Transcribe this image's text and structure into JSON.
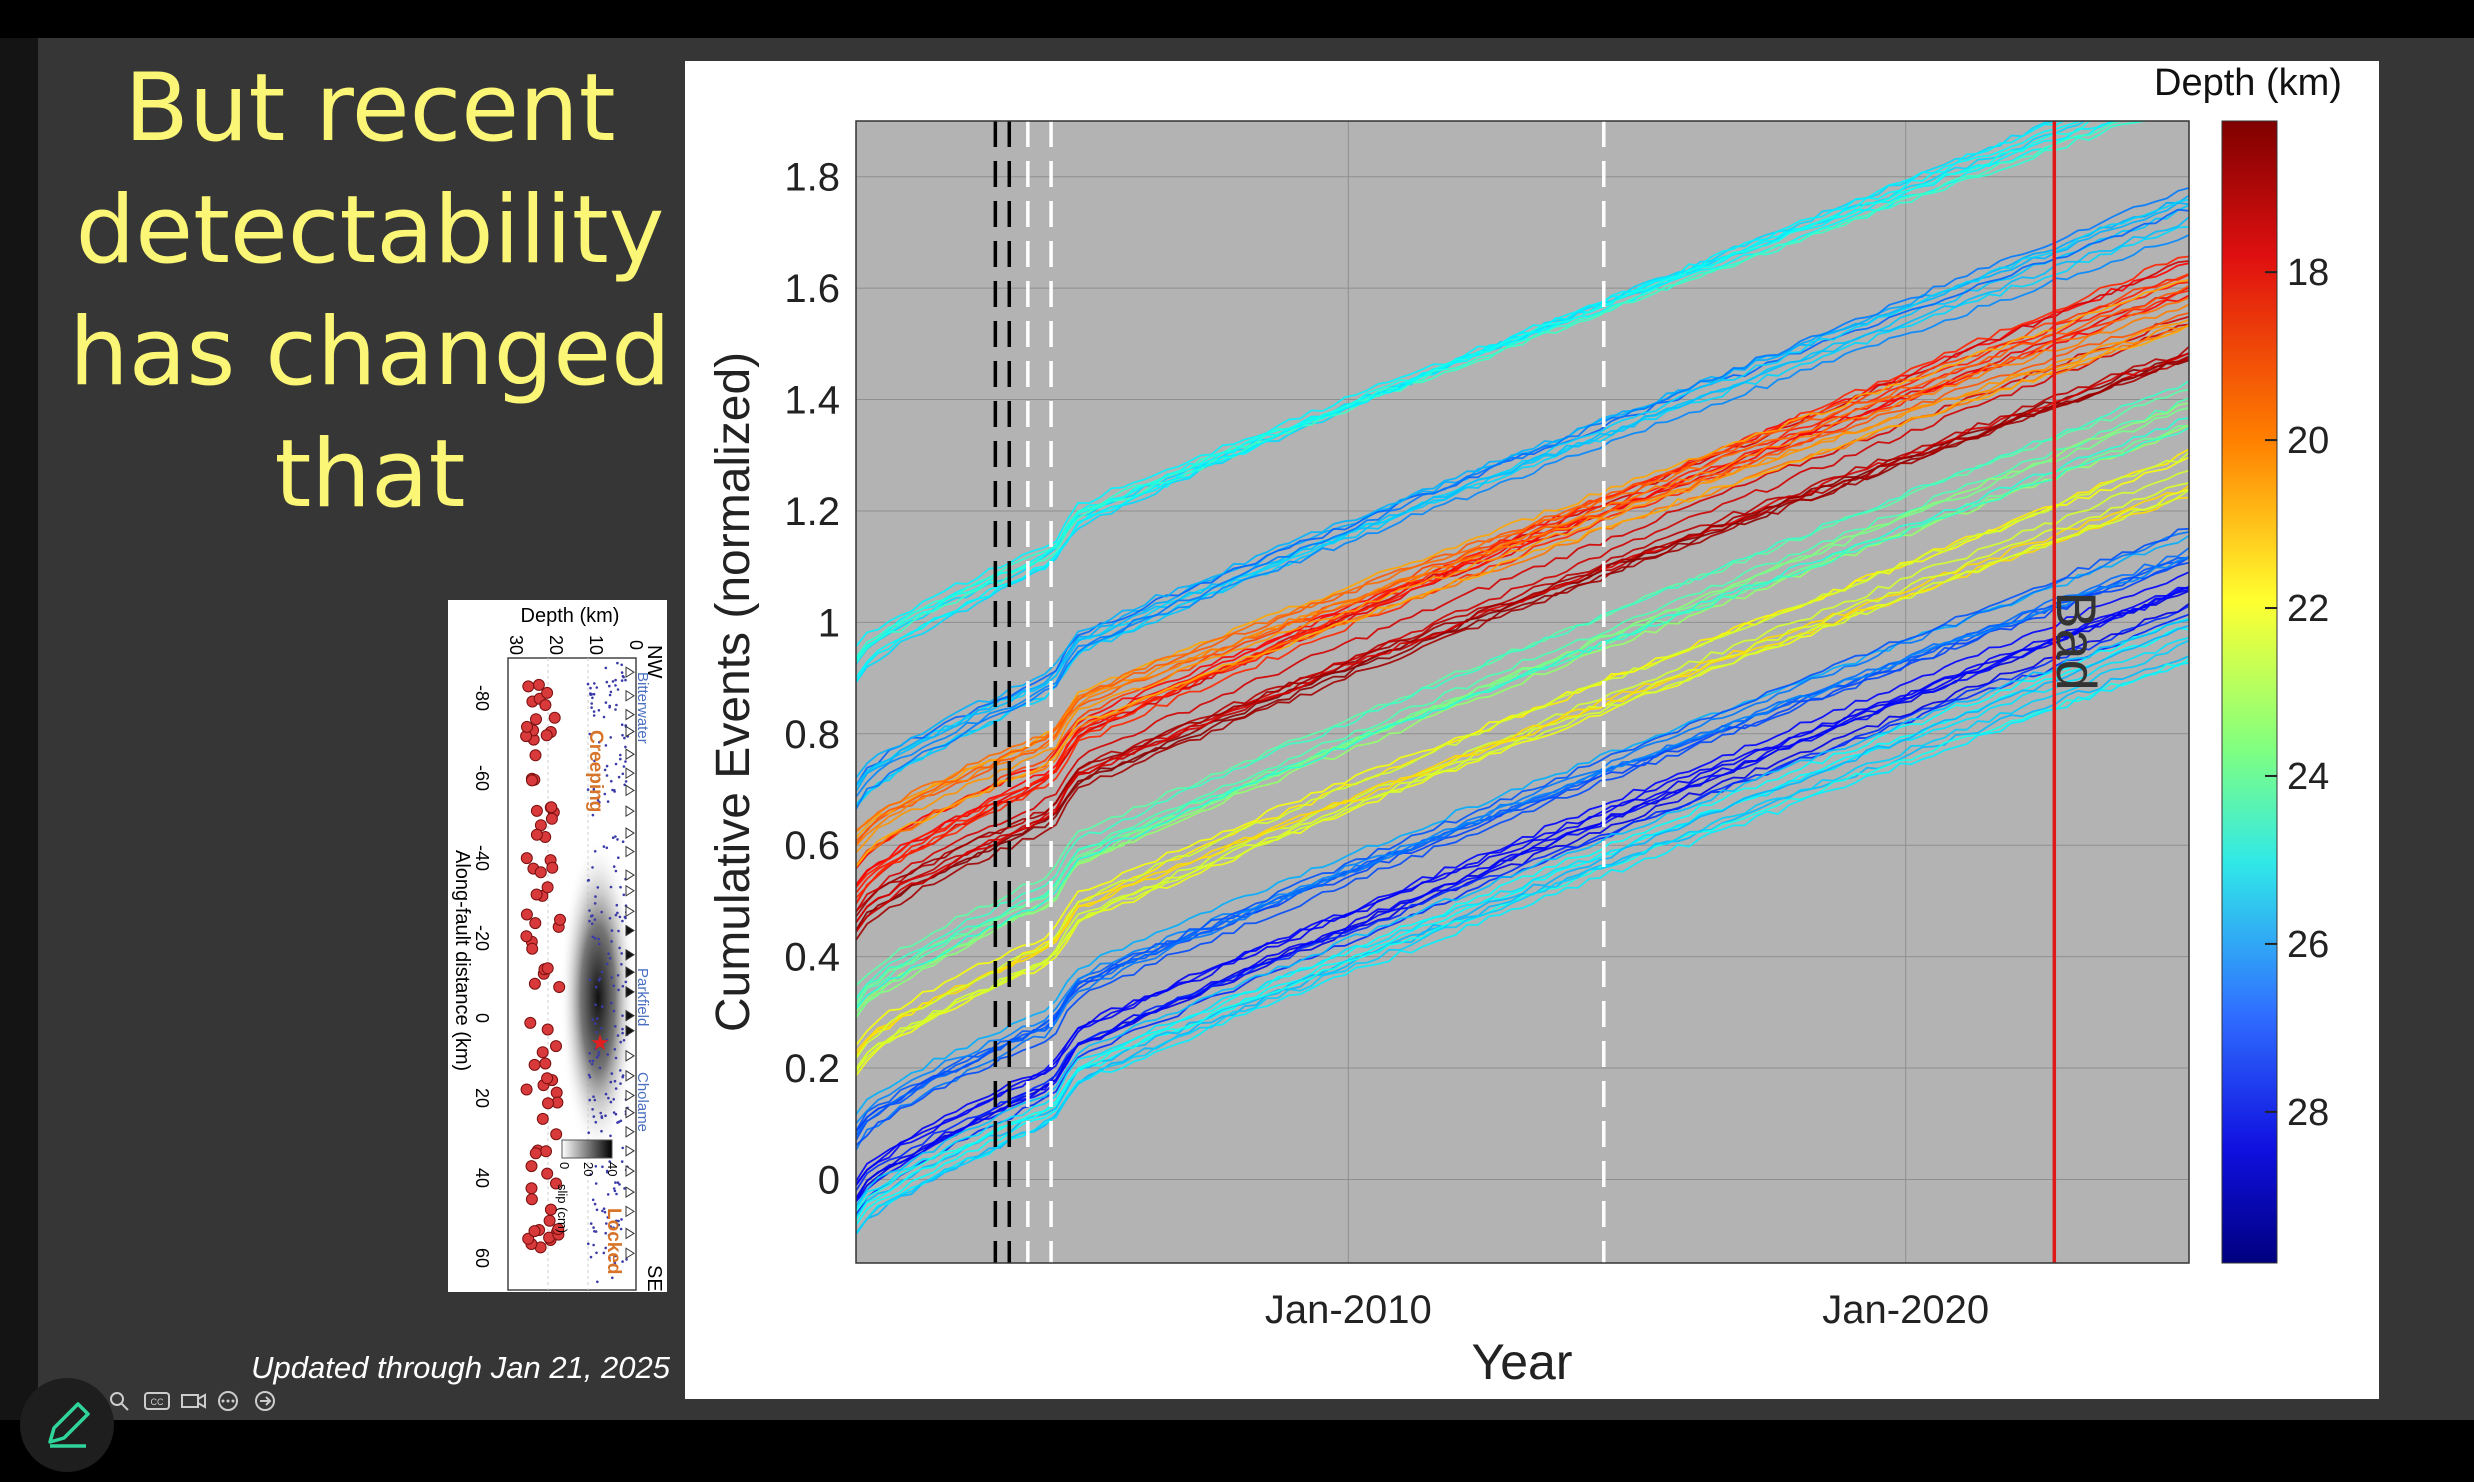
{
  "slide": {
    "title_lines": [
      "But recent",
      "detectability",
      "has changed",
      "that"
    ],
    "updated_note": "Updated through Jan 21, 2025",
    "colors": {
      "background": "#363636",
      "title": "#fbf675",
      "bad_line": "#e01818"
    }
  },
  "inset_map": {
    "depth_label": "Depth (km)",
    "depth_ticks": [
      "30",
      "20",
      "10",
      "0"
    ],
    "distance_label": "Along-fault distance (km)",
    "distance_ticks": [
      "-80",
      "-60",
      "-40",
      "-20",
      "0",
      "20",
      "40",
      "60"
    ],
    "nw_label": "NW",
    "se_label": "SE",
    "places": [
      "Bitterwater",
      "Parkfield",
      "Cholame"
    ],
    "zone_labels": [
      "Creeping",
      "Locked"
    ],
    "slip_label": "slip (cm)",
    "slip_ticks": [
      "0",
      "20",
      "40"
    ]
  },
  "chart_data": {
    "type": "line",
    "xlabel": "Year",
    "ylabel": "Cumulative Events (normalized)",
    "x_ticks": [
      "Jan-2010",
      "Jan-2020"
    ],
    "xlim": [
      "2001-03",
      "2025-02"
    ],
    "y_ticks": [
      "0",
      "0.2",
      "0.4",
      "0.6",
      "0.8",
      "1",
      "1.2",
      "1.4",
      "1.6",
      "1.8"
    ],
    "ylim": [
      -0.15,
      1.9
    ],
    "grid": true,
    "colorbar": {
      "label": "Depth (km)",
      "ticks": [
        "18",
        "20",
        "22",
        "24",
        "26",
        "28"
      ],
      "range": [
        16.2,
        29.8
      ],
      "colormap": "jet, reversed (shallow = red, deep = blue)"
    },
    "vertical_lines": [
      {
        "x": "2003-09",
        "color": "#000000",
        "style": "dashed"
      },
      {
        "x": "2003-12",
        "color": "#000000",
        "style": "dashed"
      },
      {
        "x": "2004-04",
        "color": "#ffffff",
        "style": "dashed"
      },
      {
        "x": "2004-09",
        "color": "#ffffff",
        "style": "dashed"
      },
      {
        "x": "2014-08",
        "color": "#ffffff",
        "style": "dashed"
      },
      {
        "x": "2022-09",
        "color": "#e01818",
        "style": "solid",
        "label": "Bad"
      }
    ],
    "series_bundles": [
      {
        "depth_km": 17.0,
        "y_2001": 0.46,
        "y_2025": 1.46
      },
      {
        "depth_km": 18.0,
        "y_2001": 0.53,
        "y_2025": 1.57
      },
      {
        "depth_km": 19.5,
        "y_2001": 0.59,
        "y_2025": 1.52
      },
      {
        "depth_km": 21.5,
        "y_2001": 0.22,
        "y_2025": 1.21
      },
      {
        "depth_km": 23.5,
        "y_2001": 0.31,
        "y_2025": 1.34
      },
      {
        "depth_km": 24.5,
        "y_2001": 0.92,
        "y_2025": 1.9
      },
      {
        "depth_km": 26.0,
        "y_2001": 0.69,
        "y_2025": 1.69
      },
      {
        "depth_km": 26.5,
        "y_2001": 0.08,
        "y_2025": 1.08
      },
      {
        "depth_km": 28.0,
        "y_2001": -0.03,
        "y_2025": 1.0
      },
      {
        "depth_km": 25.0,
        "y_2001": -0.07,
        "y_2025": 0.92
      }
    ]
  }
}
